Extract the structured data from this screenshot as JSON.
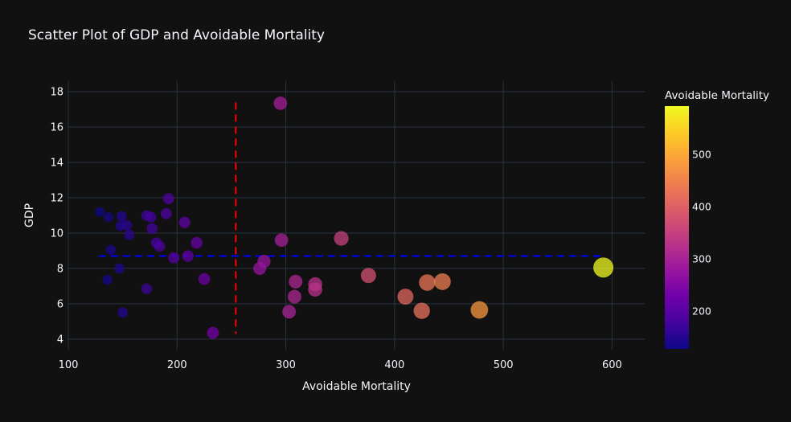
{
  "chart_data": {
    "type": "scatter",
    "title": "Scatter Plot of GDP and Avoidable Mortality",
    "xlabel": "Avoidable Mortality",
    "ylabel": "GDP",
    "xlim": [
      100,
      630
    ],
    "ylim": [
      3.4,
      18.6
    ],
    "xticks": [
      100,
      200,
      300,
      400,
      500,
      600
    ],
    "yticks": [
      4,
      6,
      8,
      10,
      12,
      14,
      16,
      18
    ],
    "grid": true,
    "colorbar": {
      "title": "Avoidable Mortality",
      "min": 128,
      "max": 592,
      "ticks": [
        200,
        300,
        400,
        500
      ],
      "colorscale": "plasma"
    },
    "reference_lines": [
      {
        "orientation": "vertical",
        "x": 254,
        "y_range": [
          4.3,
          17.4
        ],
        "color": "#ff0000",
        "style": "dashed"
      },
      {
        "orientation": "horizontal",
        "y": 8.7,
        "x_range": [
          128,
          592
        ],
        "color": "#0000ff",
        "style": "dashed"
      }
    ],
    "points": [
      {
        "x": 129,
        "y": 11.2
      },
      {
        "x": 137,
        "y": 10.9
      },
      {
        "x": 136,
        "y": 7.35
      },
      {
        "x": 139,
        "y": 9.05
      },
      {
        "x": 147,
        "y": 8.0
      },
      {
        "x": 148,
        "y": 10.4
      },
      {
        "x": 149,
        "y": 10.95
      },
      {
        "x": 150,
        "y": 5.5
      },
      {
        "x": 154,
        "y": 10.45
      },
      {
        "x": 156,
        "y": 9.9
      },
      {
        "x": 172,
        "y": 11.0
      },
      {
        "x": 172,
        "y": 6.85
      },
      {
        "x": 176,
        "y": 10.9
      },
      {
        "x": 177,
        "y": 10.25
      },
      {
        "x": 181,
        "y": 9.45
      },
      {
        "x": 184,
        "y": 9.25
      },
      {
        "x": 190,
        "y": 11.1
      },
      {
        "x": 192,
        "y": 11.95
      },
      {
        "x": 197,
        "y": 8.6
      },
      {
        "x": 207,
        "y": 10.6
      },
      {
        "x": 210,
        "y": 8.7
      },
      {
        "x": 218,
        "y": 9.45
      },
      {
        "x": 225,
        "y": 7.4
      },
      {
        "x": 233,
        "y": 4.35
      },
      {
        "x": 276,
        "y": 8.0
      },
      {
        "x": 280,
        "y": 8.4
      },
      {
        "x": 295,
        "y": 17.35
      },
      {
        "x": 296,
        "y": 9.6
      },
      {
        "x": 303,
        "y": 5.55
      },
      {
        "x": 308,
        "y": 6.4
      },
      {
        "x": 309,
        "y": 7.25
      },
      {
        "x": 327,
        "y": 7.1
      },
      {
        "x": 327,
        "y": 6.8
      },
      {
        "x": 351,
        "y": 9.7
      },
      {
        "x": 376,
        "y": 7.6
      },
      {
        "x": 410,
        "y": 6.4
      },
      {
        "x": 425,
        "y": 5.6
      },
      {
        "x": 430,
        "y": 7.2
      },
      {
        "x": 444,
        "y": 7.25
      },
      {
        "x": 478,
        "y": 5.65
      },
      {
        "x": 592,
        "y": 8.05
      }
    ]
  }
}
